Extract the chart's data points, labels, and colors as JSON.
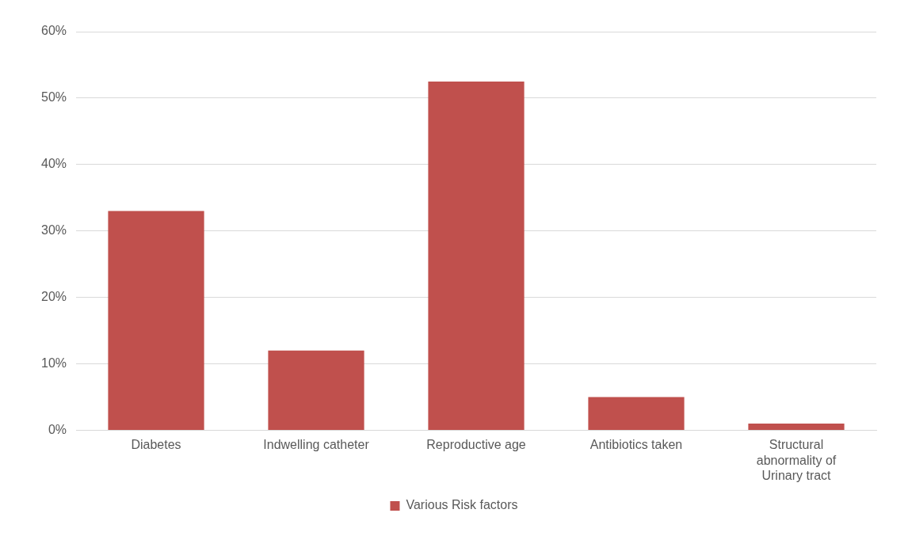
{
  "chart_data": {
    "type": "bar",
    "categories": [
      "Diabetes",
      "Indwelling catheter",
      "Reproductive age",
      "Antibiotics taken",
      "Structural abnormality of Urinary tract"
    ],
    "series": [
      {
        "name": "Various Risk factors",
        "color": "#c0504d",
        "values": [
          33,
          12,
          52.5,
          5,
          1
        ]
      }
    ],
    "ylim": [
      0,
      60
    ],
    "yticks": [
      {
        "value": 0,
        "label": "0%"
      },
      {
        "value": 10,
        "label": "10%"
      },
      {
        "value": 20,
        "label": "20%"
      },
      {
        "value": 30,
        "label": "30%"
      },
      {
        "value": 40,
        "label": "40%"
      },
      {
        "value": 50,
        "label": "50%"
      },
      {
        "value": 60,
        "label": "60%"
      }
    ],
    "grid": "y",
    "legend": "bottom"
  }
}
